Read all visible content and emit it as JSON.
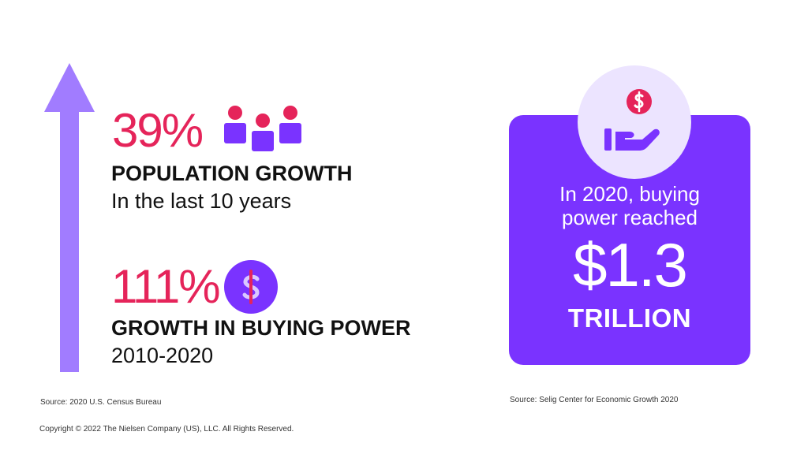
{
  "colors": {
    "accent_pink": "#e5245a",
    "accent_purple": "#7a33ff",
    "arrow_purple": "#a17cff",
    "badge_bg": "#ece4ff",
    "text": "#111111"
  },
  "icons": {
    "arrow": "up-arrow-icon",
    "population": "people-icon",
    "buying_power": "dollar-circle-icon",
    "hand_money": "hand-coin-icon"
  },
  "population": {
    "value": "39%",
    "title": "POPULATION GROWTH",
    "subtitle": "In the last 10 years"
  },
  "buying_power": {
    "value": "111%",
    "title": "GROWTH IN BUYING POWER",
    "subtitle": "2010-2020"
  },
  "card": {
    "line1": "In 2020, buying",
    "line2": "power reached",
    "amount": "$1.3",
    "unit": "TRILLION"
  },
  "sources": {
    "left": "Source: 2020 U.S. Census Bureau",
    "right": "Source: Selig Center for Economic Growth 2020"
  },
  "copyright": "Copyright © 2022 The Nielsen Company (US), LLC. All Rights Reserved."
}
